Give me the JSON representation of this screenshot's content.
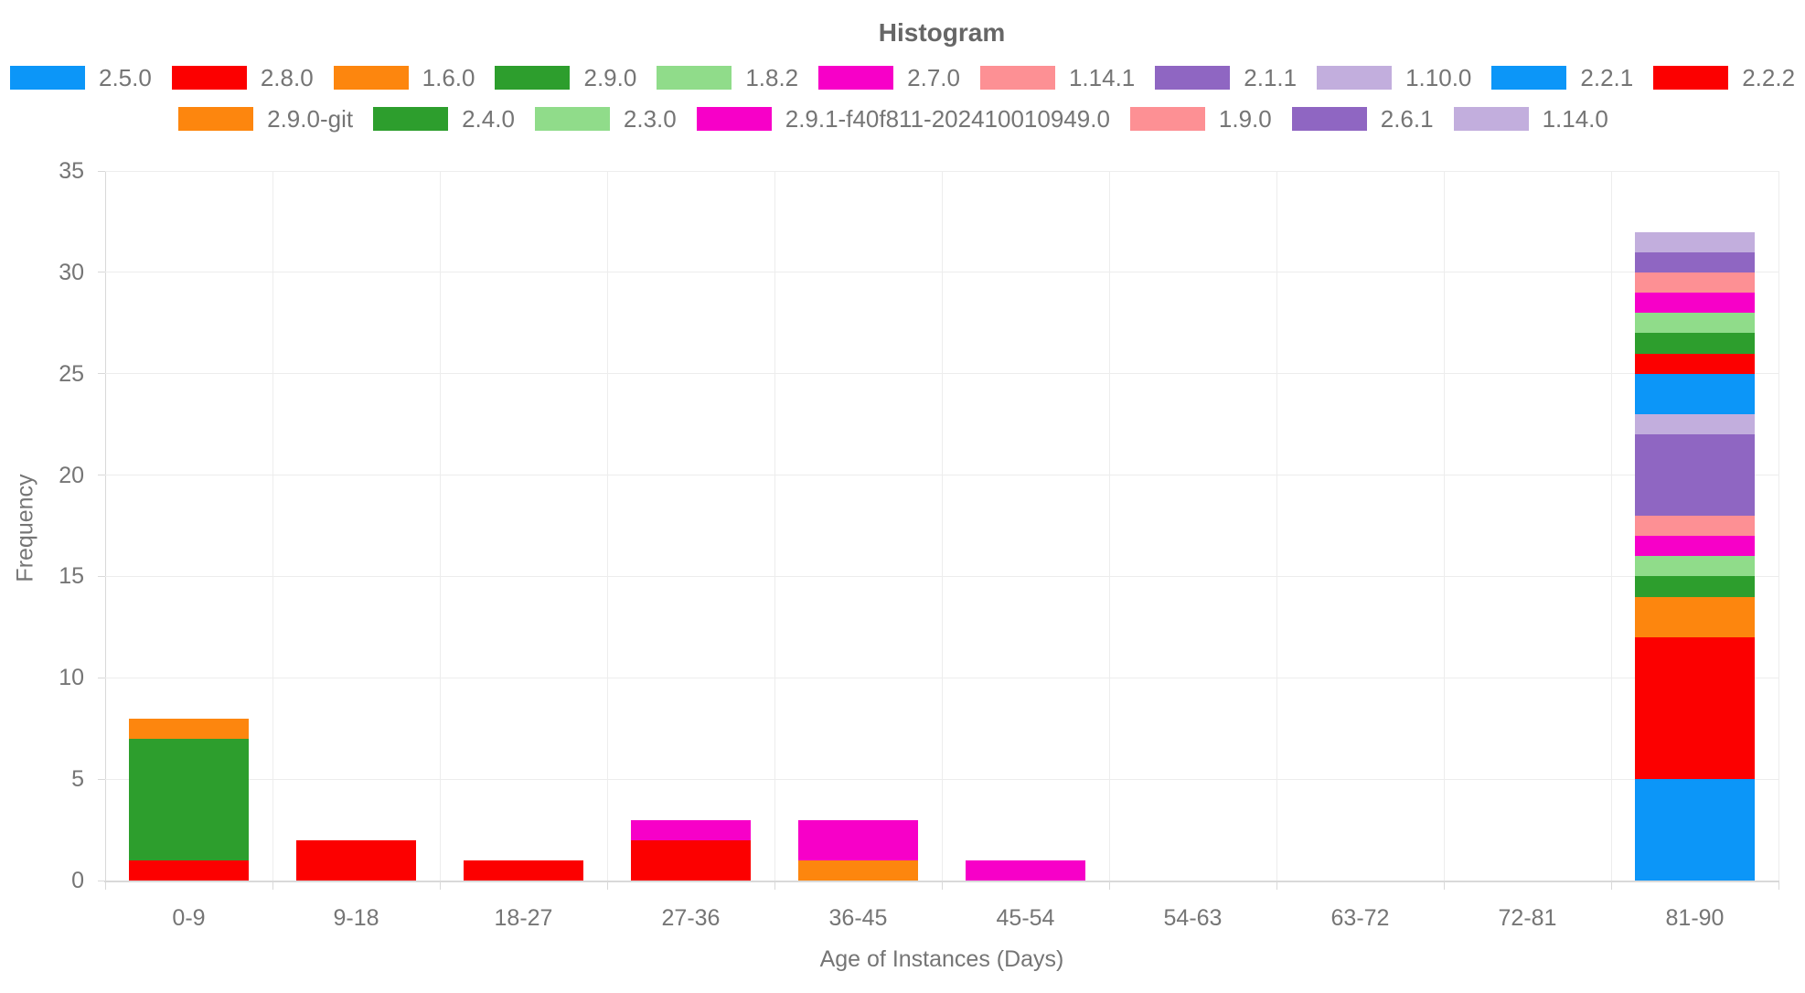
{
  "chart_data": {
    "type": "bar",
    "stacked": true,
    "title": "Histogram",
    "xlabel": "Age of Instances (Days)",
    "ylabel": "Frequency",
    "ylim": [
      0,
      35
    ],
    "yticks": [
      0,
      5,
      10,
      15,
      20,
      25,
      30,
      35
    ],
    "grid": true,
    "legend_position": "top",
    "legend_rows": [
      [
        0,
        1,
        2,
        3,
        4,
        5,
        6,
        7,
        8,
        9,
        10
      ],
      [
        11,
        12,
        13,
        14,
        15,
        16,
        17
      ]
    ],
    "categories": [
      "0-9",
      "9-18",
      "18-27",
      "27-36",
      "36-45",
      "45-54",
      "54-63",
      "63-72",
      "72-81",
      "81-90"
    ],
    "series": [
      {
        "name": "2.5.0",
        "color": "#0c96f8",
        "values": [
          0,
          0,
          0,
          0,
          0,
          0,
          0,
          0,
          0,
          5
        ]
      },
      {
        "name": "2.8.0",
        "color": "#fc0000",
        "values": [
          1,
          2,
          1,
          2,
          0,
          0,
          0,
          0,
          0,
          7
        ]
      },
      {
        "name": "1.6.0",
        "color": "#fd860e",
        "values": [
          0,
          0,
          0,
          0,
          1,
          0,
          0,
          0,
          0,
          2
        ]
      },
      {
        "name": "2.9.0",
        "color": "#2d9e2d",
        "values": [
          6,
          0,
          0,
          0,
          0,
          0,
          0,
          0,
          0,
          1
        ]
      },
      {
        "name": "1.8.2",
        "color": "#90dc8a",
        "values": [
          0,
          0,
          0,
          0,
          0,
          0,
          0,
          0,
          0,
          1
        ]
      },
      {
        "name": "2.7.0",
        "color": "#f700c8",
        "values": [
          0,
          0,
          0,
          1,
          2,
          1,
          0,
          0,
          0,
          1
        ]
      },
      {
        "name": "1.14.1",
        "color": "#fd9094",
        "values": [
          0,
          0,
          0,
          0,
          0,
          0,
          0,
          0,
          0,
          1
        ]
      },
      {
        "name": "2.1.1",
        "color": "#8f66c2",
        "values": [
          0,
          0,
          0,
          0,
          0,
          0,
          0,
          0,
          0,
          4
        ]
      },
      {
        "name": "1.10.0",
        "color": "#c2aedd",
        "values": [
          0,
          0,
          0,
          0,
          0,
          0,
          0,
          0,
          0,
          1
        ]
      },
      {
        "name": "2.2.1",
        "color": "#0c96f8",
        "values": [
          0,
          0,
          0,
          0,
          0,
          0,
          0,
          0,
          0,
          2
        ]
      },
      {
        "name": "2.2.2",
        "color": "#fc0000",
        "values": [
          0,
          0,
          0,
          0,
          0,
          0,
          0,
          0,
          0,
          1
        ]
      },
      {
        "name": "2.9.0-git",
        "color": "#fd860e",
        "values": [
          1,
          0,
          0,
          0,
          0,
          0,
          0,
          0,
          0,
          0
        ]
      },
      {
        "name": "2.4.0",
        "color": "#2d9e2d",
        "values": [
          0,
          0,
          0,
          0,
          0,
          0,
          0,
          0,
          0,
          1
        ]
      },
      {
        "name": "2.3.0",
        "color": "#90dc8a",
        "values": [
          0,
          0,
          0,
          0,
          0,
          0,
          0,
          0,
          0,
          1
        ]
      },
      {
        "name": "2.9.1-f40f811-202410010949.0",
        "color": "#f700c8",
        "values": [
          0,
          0,
          0,
          0,
          0,
          0,
          0,
          0,
          0,
          1
        ]
      },
      {
        "name": "1.9.0",
        "color": "#fd9094",
        "values": [
          0,
          0,
          0,
          0,
          0,
          0,
          0,
          0,
          0,
          1
        ]
      },
      {
        "name": "2.6.1",
        "color": "#8f66c2",
        "values": [
          0,
          0,
          0,
          0,
          0,
          0,
          0,
          0,
          0,
          1
        ]
      },
      {
        "name": "1.14.0",
        "color": "#c2aedd",
        "values": [
          0,
          0,
          0,
          0,
          0,
          0,
          0,
          0,
          0,
          1
        ]
      }
    ],
    "bin_totals": [
      8,
      2,
      1,
      3,
      3,
      1,
      0,
      0,
      0,
      32
    ],
    "text_color": "#757575",
    "title_color": "#666666"
  }
}
